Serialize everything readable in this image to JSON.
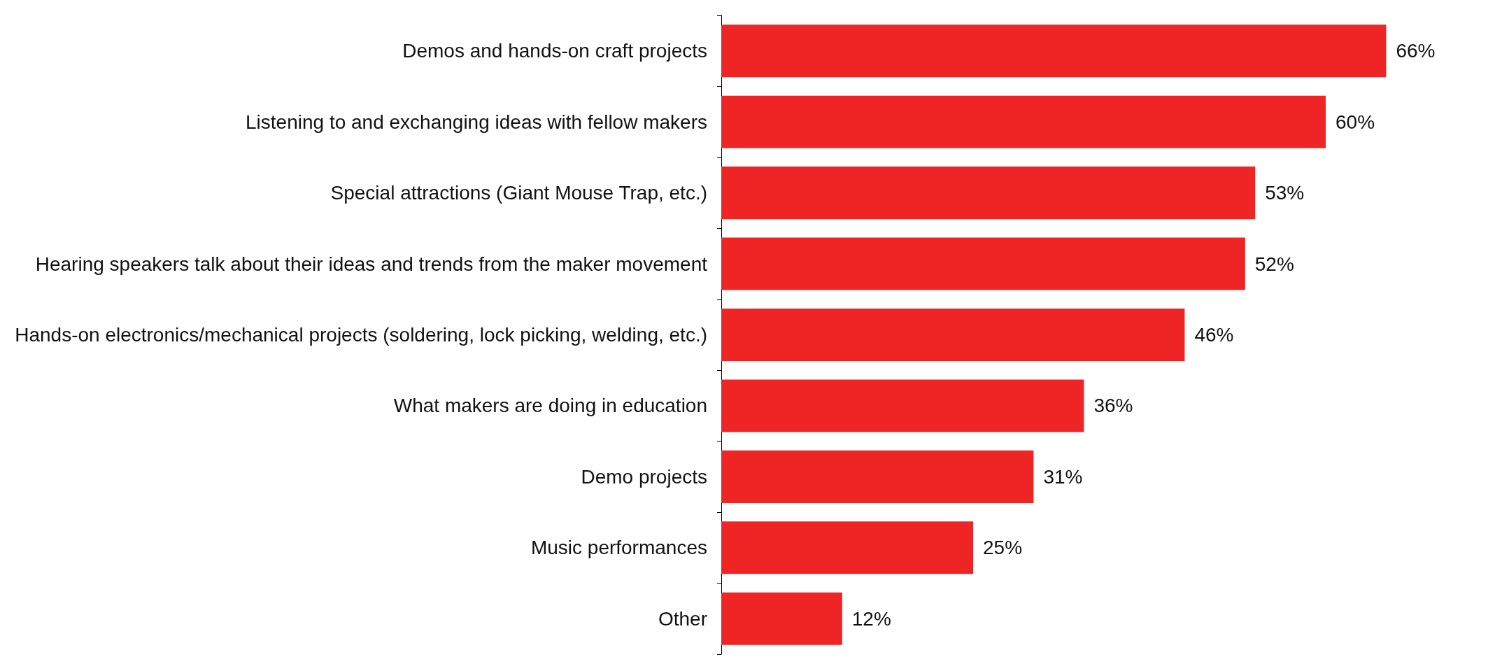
{
  "chart_data": {
    "type": "bar",
    "orientation": "horizontal",
    "categories": [
      "Demos and hands-on craft projects",
      "Listening to and exchanging ideas with fellow makers",
      "Special attractions (Giant Mouse Trap, etc.)",
      "Hearing speakers talk about their ideas and trends from the maker movement",
      "Hands-on electronics/mechanical projects (soldering, lock picking, welding, etc.)",
      "What makers are doing in education",
      "Demo projects",
      "Music performances",
      "Other"
    ],
    "values": [
      66,
      60,
      53,
      52,
      46,
      36,
      31,
      25,
      12
    ],
    "value_labels": [
      "66%",
      "60%",
      "53%",
      "52%",
      "46%",
      "36%",
      "31%",
      "25%",
      "12%"
    ],
    "color": "#ee2524"
  }
}
